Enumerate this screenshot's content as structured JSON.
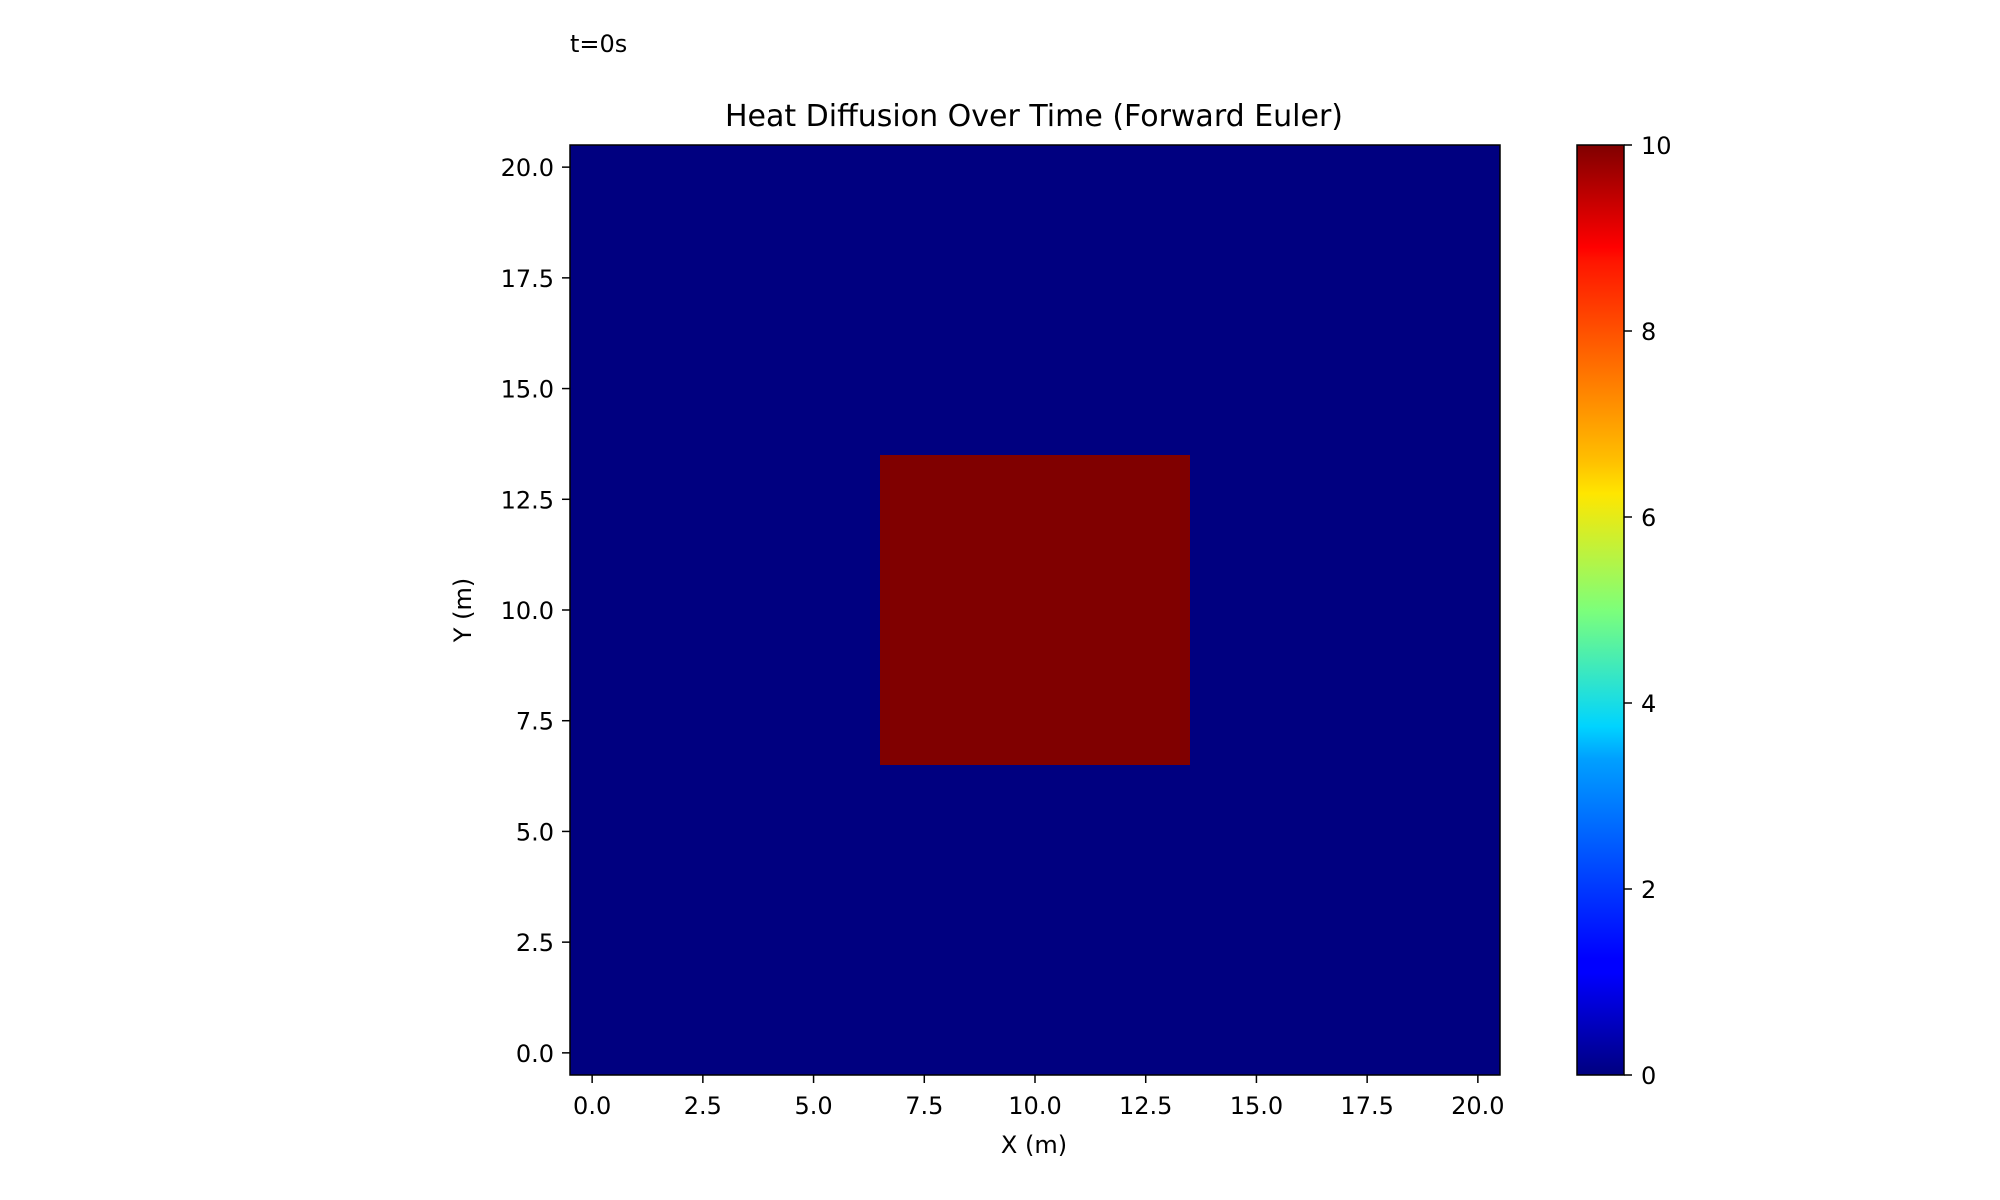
{
  "time_label": "t=0s",
  "chart_data": {
    "type": "heatmap",
    "title": "Heat Diffusion Over Time (Forward Euler)",
    "xlabel": "X (m)",
    "ylabel": "Y (m)",
    "xlim": [
      -0.5,
      20.5
    ],
    "ylim": [
      -0.5,
      20.5
    ],
    "xticks": [
      0.0,
      2.5,
      5.0,
      7.5,
      10.0,
      12.5,
      15.0,
      17.5,
      20.0
    ],
    "xtick_labels": [
      "0.0",
      "2.5",
      "5.0",
      "7.5",
      "10.0",
      "12.5",
      "15.0",
      "17.5",
      "20.0"
    ],
    "yticks": [
      0.0,
      2.5,
      5.0,
      7.5,
      10.0,
      12.5,
      15.0,
      17.5,
      20.0
    ],
    "ytick_labels": [
      "0.0",
      "2.5",
      "5.0",
      "7.5",
      "10.0",
      "12.5",
      "15.0",
      "17.5",
      "20.0"
    ],
    "colormap": "jet",
    "background_value": 0,
    "hot_region": {
      "x": [
        7,
        13
      ],
      "y": [
        7,
        13
      ],
      "value": 10
    },
    "colorbar": {
      "range": [
        0,
        10
      ],
      "ticks": [
        0,
        2,
        4,
        6,
        8,
        10
      ],
      "tick_labels": [
        "0",
        "2",
        "4",
        "6",
        "8",
        "10"
      ]
    },
    "colors": {
      "low": "#000080",
      "high": "#800000"
    }
  }
}
